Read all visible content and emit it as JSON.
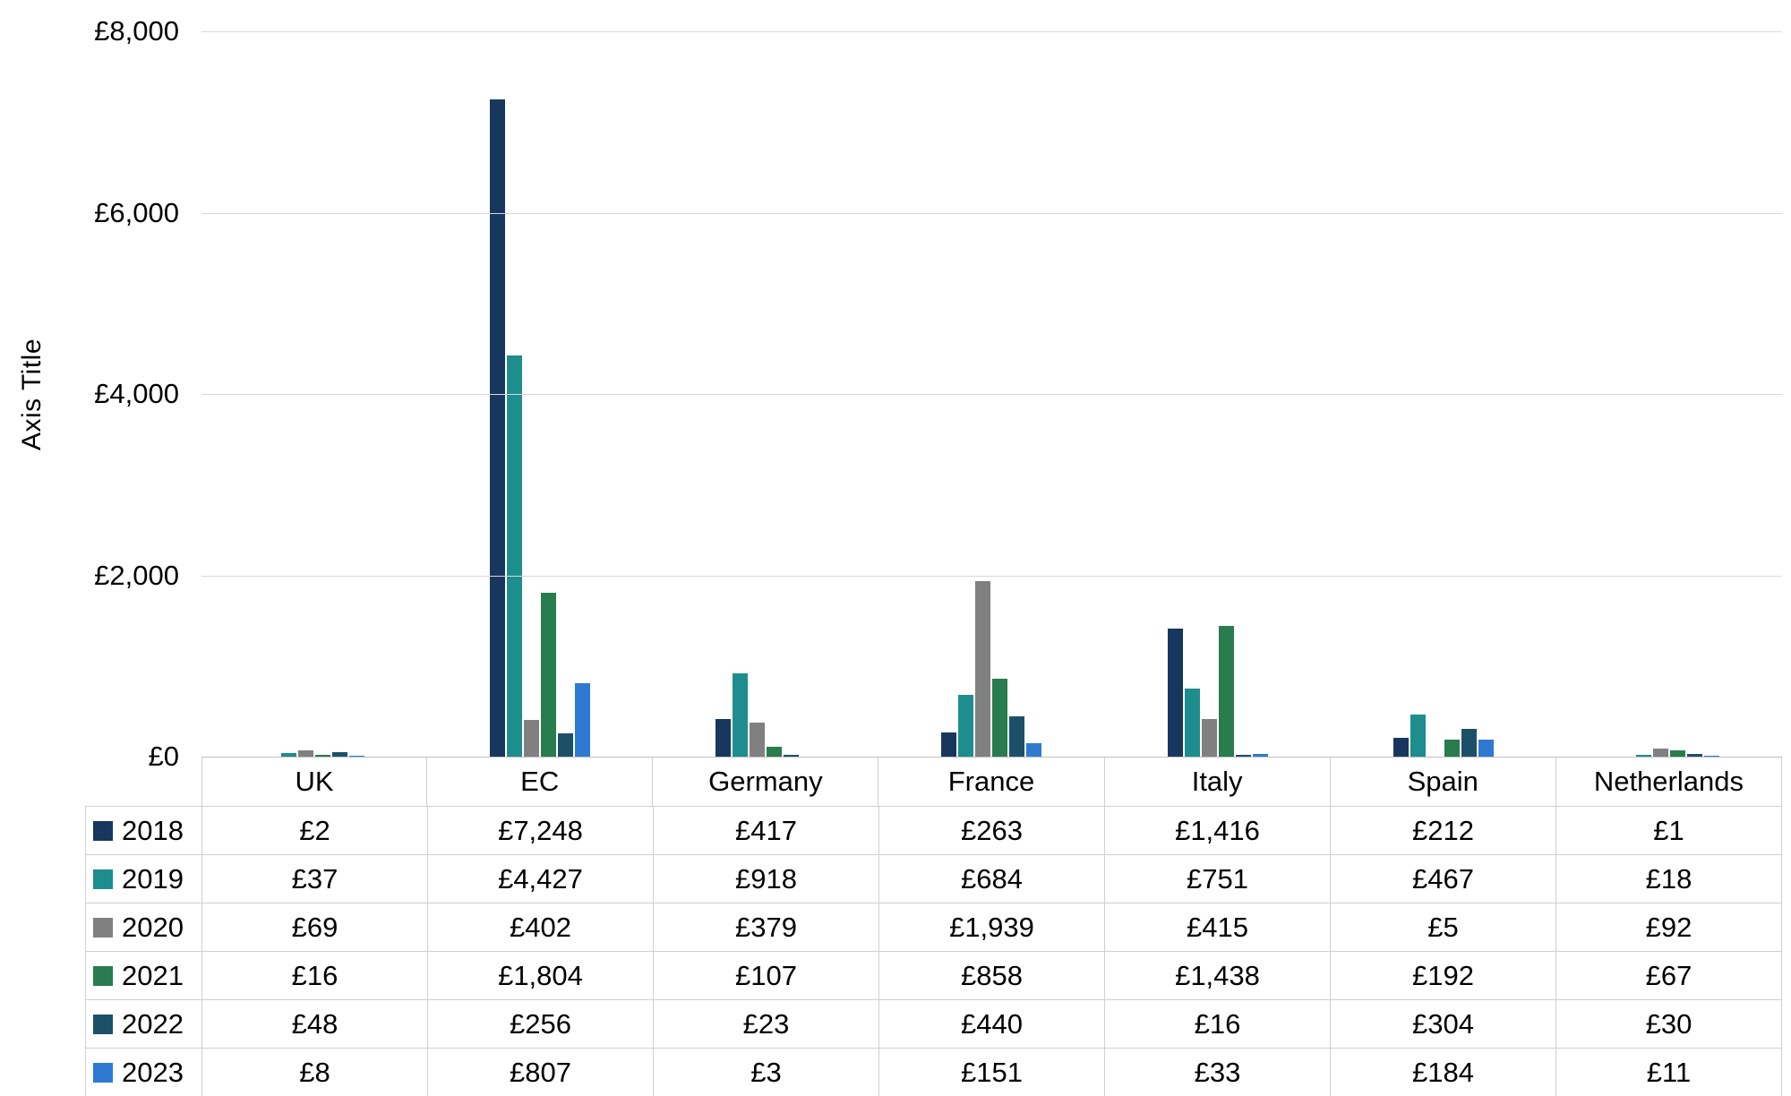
{
  "chart": {
    "ylabel": "Axis Title",
    "yticks": [
      {
        "value": 8000,
        "label": "£8,000"
      },
      {
        "value": 6000,
        "label": "£6,000"
      },
      {
        "value": 4000,
        "label": "£4,000"
      },
      {
        "value": 2000,
        "label": "£2,000"
      },
      {
        "value": 0,
        "label": "£0"
      }
    ]
  },
  "chart_data": {
    "type": "bar",
    "title": "",
    "xlabel": "",
    "ylabel": "Axis Title",
    "ylim": [
      0,
      8000
    ],
    "grid": true,
    "legend_position": "data-table-left",
    "categories": [
      "UK",
      "EC",
      "Germany",
      "France",
      "Italy",
      "Spain",
      "Netherlands"
    ],
    "series": [
      {
        "name": "2018",
        "color": "#17375e",
        "values": [
          2,
          7248,
          417,
          263,
          1416,
          212,
          1
        ],
        "display": [
          "£2",
          "£7,248",
          "£417",
          "£263",
          "£1,416",
          "£212",
          "£1"
        ]
      },
      {
        "name": "2019",
        "color": "#1e8d8d",
        "values": [
          37,
          4427,
          918,
          684,
          751,
          467,
          18
        ],
        "display": [
          "£37",
          "£4,427",
          "£918",
          "£684",
          "£751",
          "£467",
          "£18"
        ]
      },
      {
        "name": "2020",
        "color": "#808080",
        "values": [
          69,
          402,
          379,
          1939,
          415,
          5,
          92
        ],
        "display": [
          "£69",
          "£402",
          "£379",
          "£1,939",
          "£415",
          "£5",
          "£92"
        ]
      },
      {
        "name": "2021",
        "color": "#287c4d",
        "values": [
          16,
          1804,
          107,
          858,
          1438,
          192,
          67
        ],
        "display": [
          "£16",
          "£1,804",
          "£107",
          "£858",
          "£1,438",
          "£192",
          "£67"
        ]
      },
      {
        "name": "2022",
        "color": "#1c5068",
        "values": [
          48,
          256,
          23,
          440,
          16,
          304,
          30
        ],
        "display": [
          "£48",
          "£256",
          "£23",
          "£440",
          "£16",
          "£304",
          "£30"
        ]
      },
      {
        "name": "2023",
        "color": "#2e7ad2",
        "values": [
          8,
          807,
          3,
          151,
          33,
          184,
          11
        ],
        "display": [
          "£8",
          "£807",
          "£3",
          "£151",
          "£33",
          "£184",
          "£11"
        ]
      }
    ]
  }
}
